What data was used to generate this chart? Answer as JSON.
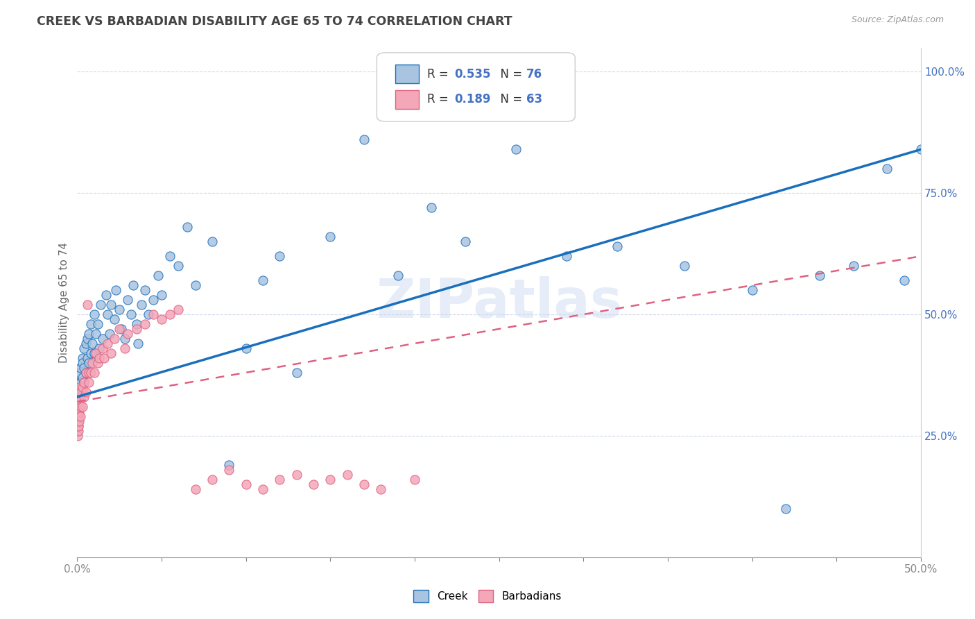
{
  "title": "CREEK VS BARBADIAN DISABILITY AGE 65 TO 74 CORRELATION CHART",
  "source": "Source: ZipAtlas.com",
  "ylabel": "Disability Age 65 to 74",
  "ytick_values": [
    0.25,
    0.5,
    0.75,
    1.0
  ],
  "creek_R": 0.535,
  "creek_N": 76,
  "barbadian_R": 0.189,
  "barbadian_N": 63,
  "creek_color": "#a8c4e0",
  "barbadian_color": "#f4a7b9",
  "creek_line_color": "#1a6fbd",
  "barbadian_line_color": "#e06080",
  "background_color": "#ffffff",
  "grid_color": "#d0d8e8",
  "title_color": "#444444",
  "watermark": "ZIPatlas",
  "creek_x": [
    0.0005,
    0.0008,
    0.001,
    0.001,
    0.002,
    0.002,
    0.002,
    0.003,
    0.003,
    0.003,
    0.003,
    0.004,
    0.004,
    0.004,
    0.005,
    0.005,
    0.006,
    0.006,
    0.007,
    0.007,
    0.008,
    0.008,
    0.009,
    0.01,
    0.01,
    0.011,
    0.012,
    0.013,
    0.014,
    0.015,
    0.017,
    0.018,
    0.019,
    0.02,
    0.022,
    0.023,
    0.025,
    0.026,
    0.028,
    0.03,
    0.032,
    0.033,
    0.035,
    0.036,
    0.038,
    0.04,
    0.042,
    0.045,
    0.048,
    0.05,
    0.055,
    0.06,
    0.065,
    0.07,
    0.08,
    0.09,
    0.1,
    0.11,
    0.12,
    0.13,
    0.15,
    0.17,
    0.19,
    0.21,
    0.23,
    0.26,
    0.29,
    0.32,
    0.36,
    0.4,
    0.42,
    0.44,
    0.46,
    0.48,
    0.49,
    0.5
  ],
  "creek_y": [
    0.34,
    0.36,
    0.33,
    0.38,
    0.36,
    0.35,
    0.39,
    0.34,
    0.37,
    0.41,
    0.4,
    0.39,
    0.43,
    0.36,
    0.38,
    0.44,
    0.45,
    0.41,
    0.4,
    0.46,
    0.42,
    0.48,
    0.44,
    0.42,
    0.5,
    0.46,
    0.48,
    0.43,
    0.52,
    0.45,
    0.54,
    0.5,
    0.46,
    0.52,
    0.49,
    0.55,
    0.51,
    0.47,
    0.45,
    0.53,
    0.5,
    0.56,
    0.48,
    0.44,
    0.52,
    0.55,
    0.5,
    0.53,
    0.58,
    0.54,
    0.62,
    0.6,
    0.68,
    0.56,
    0.65,
    0.19,
    0.43,
    0.57,
    0.62,
    0.38,
    0.66,
    0.86,
    0.58,
    0.72,
    0.65,
    0.84,
    0.62,
    0.64,
    0.6,
    0.55,
    0.1,
    0.58,
    0.6,
    0.8,
    0.57,
    0.84
  ],
  "barbadian_x": [
    0.0001,
    0.0002,
    0.0003,
    0.0003,
    0.0004,
    0.0004,
    0.0005,
    0.0005,
    0.0006,
    0.0006,
    0.0007,
    0.0007,
    0.0008,
    0.0008,
    0.0009,
    0.001,
    0.001,
    0.001,
    0.002,
    0.002,
    0.002,
    0.003,
    0.003,
    0.004,
    0.004,
    0.005,
    0.005,
    0.006,
    0.007,
    0.007,
    0.008,
    0.009,
    0.01,
    0.011,
    0.012,
    0.013,
    0.015,
    0.016,
    0.018,
    0.02,
    0.022,
    0.025,
    0.028,
    0.03,
    0.035,
    0.04,
    0.045,
    0.05,
    0.055,
    0.06,
    0.07,
    0.08,
    0.09,
    0.1,
    0.11,
    0.12,
    0.13,
    0.14,
    0.15,
    0.16,
    0.17,
    0.18,
    0.2
  ],
  "barbadian_y": [
    0.28,
    0.27,
    0.26,
    0.3,
    0.25,
    0.28,
    0.27,
    0.3,
    0.28,
    0.26,
    0.29,
    0.27,
    0.3,
    0.29,
    0.28,
    0.3,
    0.32,
    0.35,
    0.29,
    0.31,
    0.34,
    0.31,
    0.35,
    0.33,
    0.36,
    0.34,
    0.38,
    0.52,
    0.36,
    0.38,
    0.38,
    0.4,
    0.38,
    0.42,
    0.4,
    0.41,
    0.43,
    0.41,
    0.44,
    0.42,
    0.45,
    0.47,
    0.43,
    0.46,
    0.47,
    0.48,
    0.5,
    0.49,
    0.5,
    0.51,
    0.14,
    0.16,
    0.18,
    0.15,
    0.14,
    0.16,
    0.17,
    0.15,
    0.16,
    0.17,
    0.15,
    0.14,
    0.16
  ]
}
